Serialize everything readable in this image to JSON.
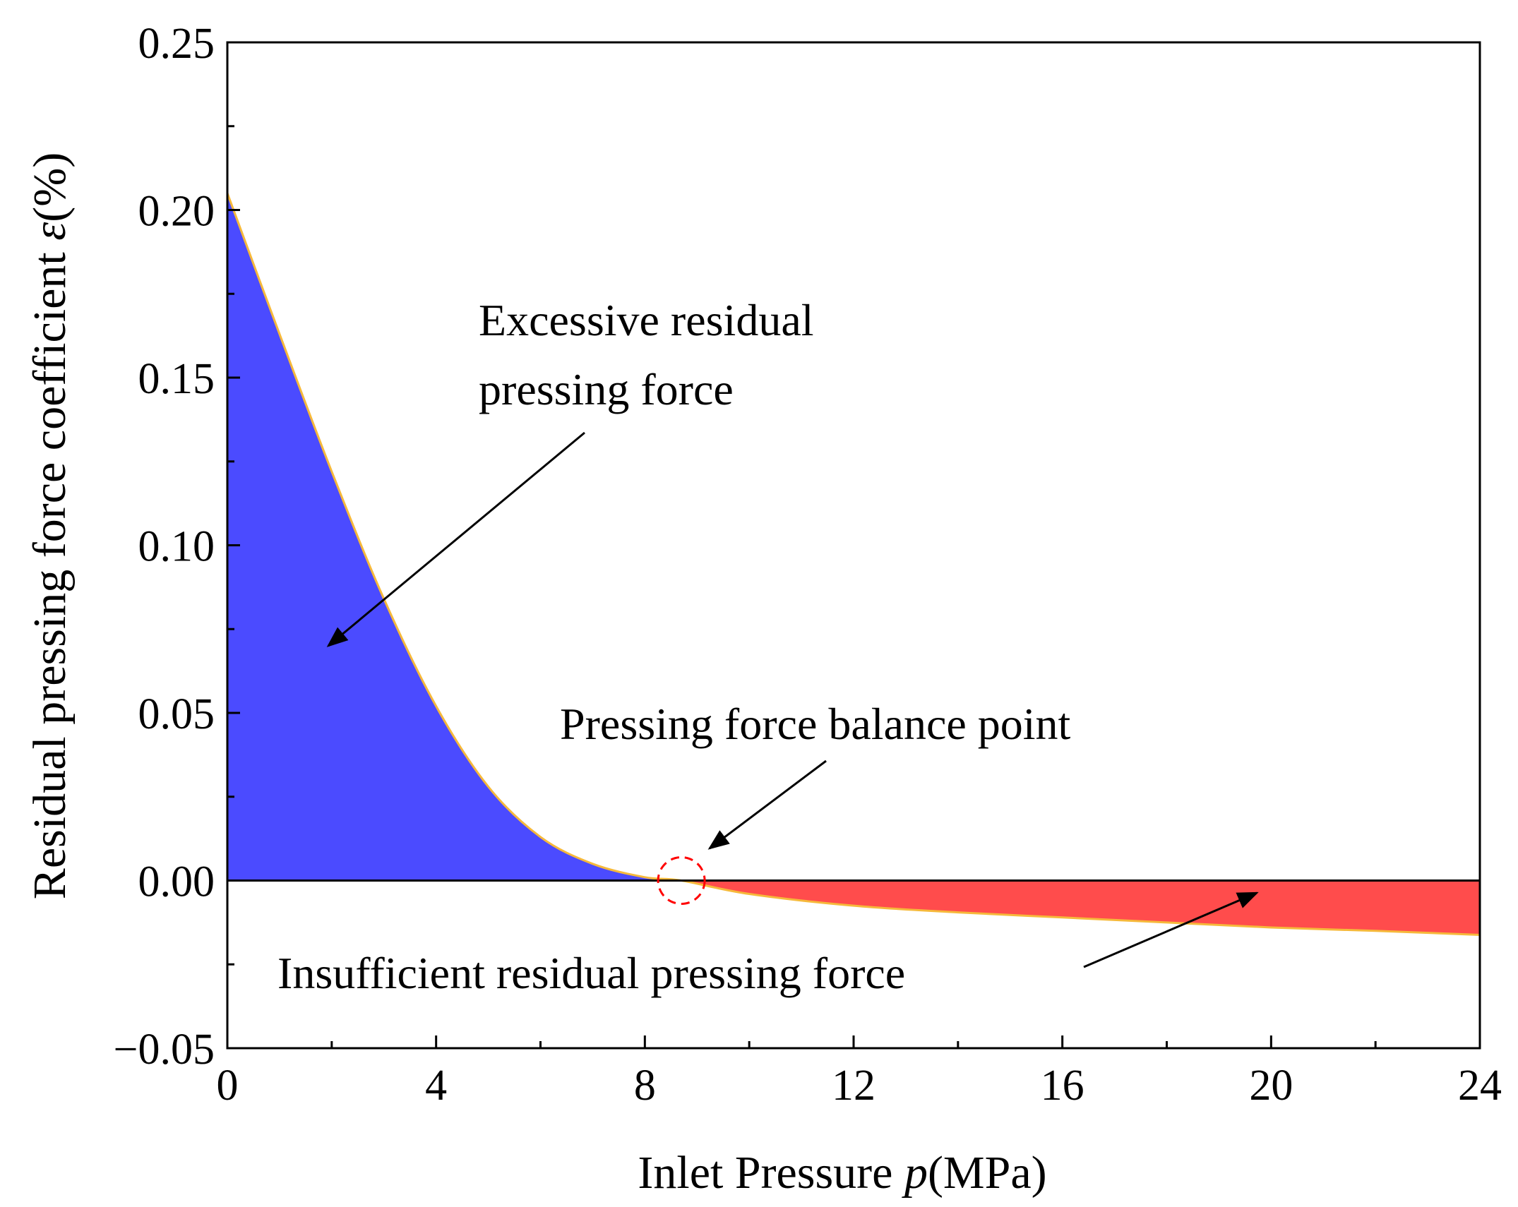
{
  "chart_data": {
    "type": "area",
    "xlabel": {
      "prefix": "Inlet Pressure ",
      "symbol": "p",
      "suffix": "(MPa)"
    },
    "ylabel": {
      "prefix": "Residual pressing force coefficient ",
      "symbol": "ε",
      "suffix": "(%)"
    },
    "xlim": [
      0,
      24
    ],
    "ylim": [
      -0.05,
      0.25
    ],
    "x_ticks": [
      0,
      4,
      8,
      12,
      16,
      20,
      24
    ],
    "x_tick_labels": [
      "0",
      "4",
      "8",
      "12",
      "16",
      "20",
      "24"
    ],
    "y_ticks": [
      -0.05,
      0.0,
      0.05,
      0.1,
      0.15,
      0.2,
      0.25
    ],
    "y_tick_labels": [
      "−0.05",
      "0.00",
      "0.05",
      "0.10",
      "0.15",
      "0.20",
      "0.25"
    ],
    "x_minor_ticks": [
      2,
      6,
      10,
      14,
      18,
      22
    ],
    "y_minor_ticks": [
      -0.025,
      0.025,
      0.075,
      0.125,
      0.175,
      0.225
    ],
    "series": [
      {
        "name": "Residual pressing force coefficient",
        "x": [
          0,
          1,
          2,
          3,
          4,
          5,
          6,
          7,
          8,
          8.7,
          10,
          12,
          14,
          16,
          18,
          20,
          22,
          24
        ],
        "y": [
          0.205,
          0.163,
          0.122,
          0.084,
          0.052,
          0.028,
          0.013,
          0.005,
          0.001,
          0.0,
          -0.004,
          -0.0075,
          -0.0095,
          -0.011,
          -0.0125,
          -0.014,
          -0.015,
          -0.0162
        ]
      }
    ],
    "balance_point": {
      "x": 8.7,
      "y": 0.0
    },
    "colors": {
      "positive_fill": "#4b4bff",
      "negative_fill": "#ff4c4c",
      "curve": "#f6b93b",
      "balance_marker": "#ff0000"
    },
    "annotations": [
      {
        "lines": [
          "Excessive residual",
          "pressing force"
        ]
      },
      {
        "lines": [
          "Pressing force balance point"
        ]
      },
      {
        "lines": [
          "Insufficient residual pressing force"
        ]
      }
    ]
  }
}
